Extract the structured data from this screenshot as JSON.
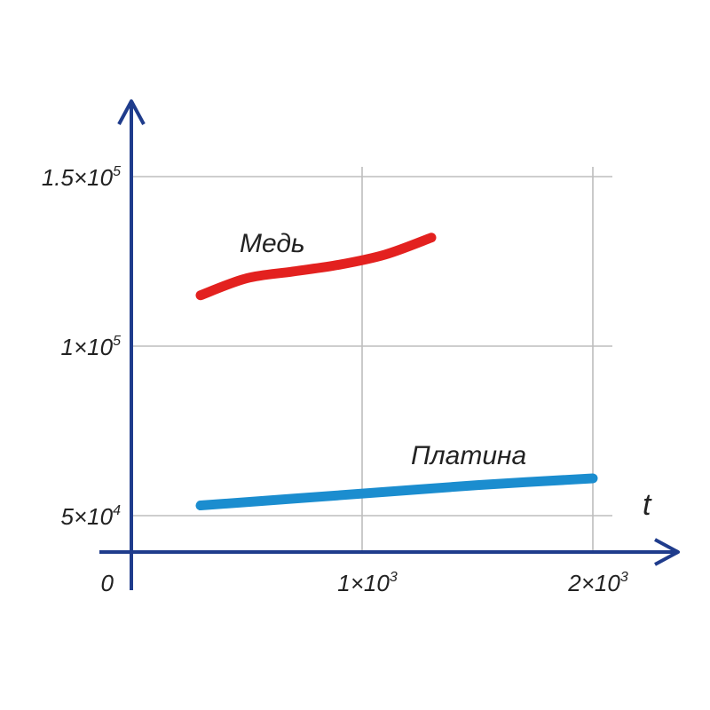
{
  "chart_data": {
    "type": "line",
    "xlabel": "t",
    "ylabel": "",
    "origin_label": "0",
    "xlim": [
      0,
      2200
    ],
    "ylim": [
      40000,
      160000
    ],
    "grid": true,
    "x_ticks": [
      {
        "value": 1000,
        "mantissa": "1×10",
        "exp": "3"
      },
      {
        "value": 2000,
        "mantissa": "2×10",
        "exp": "3"
      }
    ],
    "y_ticks": [
      {
        "value": 50000,
        "mantissa": "5×10",
        "exp": "4"
      },
      {
        "value": 100000,
        "mantissa": "1×10",
        "exp": "5"
      },
      {
        "value": 150000,
        "mantissa": "1.5×10",
        "exp": "5"
      }
    ],
    "series": [
      {
        "name": "Медь",
        "color": "#e3211f",
        "x": [
          300,
          500,
          700,
          900,
          1100,
          1300
        ],
        "y": [
          115000,
          120000,
          122000,
          124000,
          127000,
          132000
        ]
      },
      {
        "name": "Платина",
        "color": "#1b8dcf",
        "x": [
          300,
          700,
          1100,
          1500,
          2000
        ],
        "y": [
          53000,
          55000,
          57000,
          59000,
          61000
        ]
      }
    ]
  },
  "colors": {
    "axis": "#1f3c8c",
    "grid": "#bdbdbd",
    "text": "#222222"
  }
}
